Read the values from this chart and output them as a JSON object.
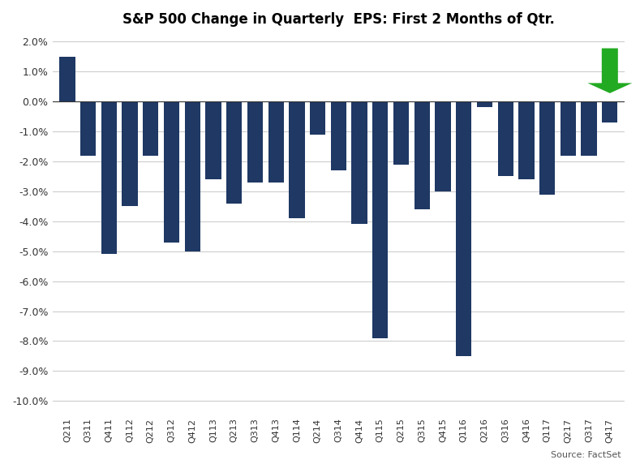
{
  "categories": [
    "Q211",
    "Q311",
    "Q411",
    "Q112",
    "Q212",
    "Q312",
    "Q412",
    "Q113",
    "Q213",
    "Q313",
    "Q413",
    "Q114",
    "Q214",
    "Q314",
    "Q414",
    "Q115",
    "Q215",
    "Q315",
    "Q415",
    "Q116",
    "Q216",
    "Q316",
    "Q416",
    "Q117",
    "Q217",
    "Q317",
    "Q417"
  ],
  "values": [
    1.5,
    -1.8,
    -5.1,
    -3.5,
    -1.8,
    -4.7,
    -5.0,
    -2.6,
    -3.4,
    -2.7,
    -2.7,
    -3.9,
    -1.1,
    -2.3,
    -4.1,
    -7.9,
    -2.1,
    -3.6,
    -3.0,
    -8.5,
    -0.2,
    -2.5,
    -2.6,
    -3.1,
    -1.8,
    -1.8,
    -0.7
  ],
  "bar_color": "#1F3864",
  "highlight_color": "#22AA22",
  "title": "S&P 500 Change in Quarterly  EPS: First 2 Months of Qtr.",
  "source": "Source: FactSet",
  "ylim": [
    -10.5,
    2.3
  ],
  "yticks": [
    2.0,
    1.0,
    0.0,
    -1.0,
    -2.0,
    -3.0,
    -4.0,
    -5.0,
    -6.0,
    -7.0,
    -8.0,
    -9.0,
    -10.0
  ],
  "arrow_index": 26,
  "background_color": "#FFFFFF",
  "grid_color": "#C8C8C8"
}
